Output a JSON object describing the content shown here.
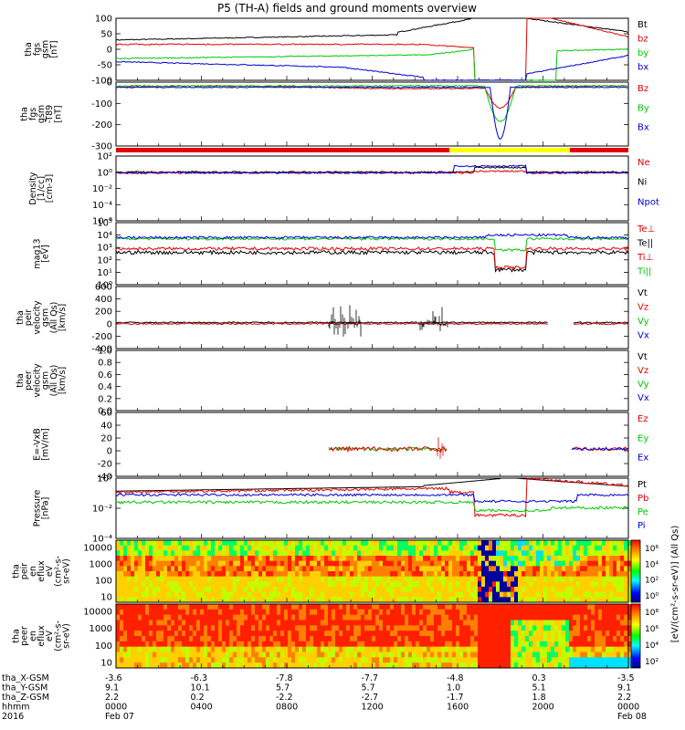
{
  "title": "P5 (TH-A) fields and ground moments overview",
  "colors": {
    "black": "#000000",
    "red": "#e00000",
    "green": "#00c800",
    "blue": "#0000d0",
    "yellow": "#ffff00"
  },
  "chart_data": [
    {
      "id": "p1",
      "type": "line",
      "ylabel": [
        "tha",
        "fgs",
        "gsm",
        "[nT]"
      ],
      "yticks": [
        "100",
        "50",
        "0",
        "-50",
        "-100"
      ],
      "ylim": [
        -100,
        100
      ],
      "legend": [
        {
          "name": "Bt",
          "color": "#000000"
        },
        {
          "name": "bz",
          "color": "#e00000"
        },
        {
          "name": "by",
          "color": "#00c800"
        },
        {
          "name": "bx",
          "color": "#0000d0"
        }
      ]
    },
    {
      "id": "p2",
      "type": "line",
      "ylabel": [
        "tha",
        "fgs",
        "gsm",
        "-T89",
        "[nT]"
      ],
      "yticks": [
        "0",
        "-100",
        "-200",
        "-300"
      ],
      "ylim": [
        -340,
        30
      ],
      "legend": [
        {
          "name": "Bz",
          "color": "#e00000"
        },
        {
          "name": "By",
          "color": "#00c800"
        },
        {
          "name": "Bx",
          "color": "#0000d0"
        }
      ]
    },
    {
      "id": "p3",
      "type": "line",
      "ylabel": [
        "Density",
        "[1/cc]",
        "[cm-3]"
      ],
      "yticks": [
        "10²",
        "10⁰",
        "10⁻²",
        "10⁻⁴",
        "10⁻⁶"
      ],
      "ylim": [
        -6,
        2.5
      ],
      "scale": "log",
      "legend": [
        {
          "name": "Ne",
          "color": "#e00000"
        },
        {
          "name": "Ni",
          "color": "#000000"
        },
        {
          "name": "Npot",
          "color": "#0000d0"
        }
      ]
    },
    {
      "id": "p4",
      "type": "line",
      "ylabel": [
        "mag13",
        "[eV]"
      ],
      "yticks": [
        "10⁵",
        "10⁴",
        "10³",
        "10²",
        "10¹",
        "10⁰"
      ],
      "ylim": [
        0,
        5
      ],
      "scale": "log",
      "legend": [
        {
          "name": "Te⊥",
          "color": "#e00000"
        },
        {
          "name": "Te||",
          "color": "#000000"
        },
        {
          "name": "Ti⊥",
          "color": "#e00000"
        },
        {
          "name": "Ti||",
          "color": "#00c800"
        }
      ]
    },
    {
      "id": "p5",
      "type": "line",
      "ylabel": [
        "tha",
        "peir",
        "velocity",
        "gsm",
        "(All Qs)",
        "[km/s]"
      ],
      "yticks": [
        "600",
        "400",
        "200",
        "0",
        "-200",
        "-400"
      ],
      "ylim": [
        -400,
        600
      ],
      "legend": [
        {
          "name": "Vt",
          "color": "#000000"
        },
        {
          "name": "Vz",
          "color": "#e00000"
        },
        {
          "name": "Vy",
          "color": "#00c800"
        },
        {
          "name": "Vx",
          "color": "#0000d0"
        }
      ]
    },
    {
      "id": "p6",
      "type": "line",
      "ylabel": [
        "tha",
        "peer",
        "velocity",
        "gsm",
        "(All Qs)",
        "[km/s]"
      ],
      "yticks": [
        "1.0",
        "0.8",
        "0.6",
        "0.4",
        "0.2",
        "0.0"
      ],
      "ylim": [
        0,
        1
      ],
      "legend": [
        {
          "name": "Vt",
          "color": "#000000"
        },
        {
          "name": "Vz",
          "color": "#e00000"
        },
        {
          "name": "Vy",
          "color": "#00c800"
        },
        {
          "name": "Vx",
          "color": "#0000d0"
        }
      ]
    },
    {
      "id": "p7",
      "type": "line",
      "ylabel": [
        "E=-VxB",
        "[mV/m]"
      ],
      "yticks": [
        "60",
        "40",
        "20",
        "0",
        "-20",
        "-40"
      ],
      "ylim": [
        -45,
        60
      ],
      "legend": [
        {
          "name": "Ez",
          "color": "#e00000"
        },
        {
          "name": "Ey",
          "color": "#00c800"
        },
        {
          "name": "Ex",
          "color": "#0000d0"
        }
      ]
    },
    {
      "id": "p8",
      "type": "line",
      "ylabel": [
        "Pressure",
        "[nPa]"
      ],
      "yticks": [
        "10⁰",
        "10⁻²",
        "10⁻⁴"
      ],
      "ylim": [
        -5.5,
        1
      ],
      "scale": "log",
      "legend": [
        {
          "name": "Pt",
          "color": "#000000"
        },
        {
          "name": "Pb",
          "color": "#e00000"
        },
        {
          "name": "Pe",
          "color": "#00c800"
        },
        {
          "name": "Pi",
          "color": "#0000d0"
        }
      ]
    },
    {
      "id": "p9",
      "type": "heatmap",
      "ylabel": [
        "tha",
        "peir",
        "en",
        "eflux",
        "eV",
        "(cm²-s-",
        "sr-eV)"
      ],
      "yticks": [
        "10000",
        "1000",
        "100",
        "10"
      ],
      "colorbar": [
        "10⁶",
        "10⁴",
        "10²",
        "10⁰"
      ]
    },
    {
      "id": "p10",
      "type": "heatmap",
      "ylabel": [
        "tha",
        "peer",
        "en",
        "eflux",
        "eV",
        "(cm²-s-",
        "sr-eV)"
      ],
      "yticks": [
        "10000",
        "1000",
        "100",
        "10"
      ],
      "colorbar": [
        "10⁸",
        "10⁶",
        "10⁴",
        "10²"
      ]
    }
  ],
  "colorbar_label": "[eV/(cm²-s-sr-eV)] (All Qs)",
  "xaxis": {
    "rows": [
      {
        "label": "tha_X-GSM",
        "values": [
          "-3.6",
          "-6.3",
          "-7.8",
          "-7.7",
          "-4.8",
          "0.3",
          "-3.5"
        ]
      },
      {
        "label": "tha_Y-GSM",
        "values": [
          "9.1",
          "10.1",
          "5.7",
          "5.7",
          "1.0",
          "5.1",
          "9.1"
        ]
      },
      {
        "label": "tha_Z-GSM",
        "values": [
          "2.2",
          "0.2",
          "-2.2",
          "-2.7",
          "-1.7",
          "1.8",
          "2.2"
        ]
      },
      {
        "label": "hhmm",
        "values": [
          "0000",
          "0400",
          "0800",
          "1200",
          "1600",
          "2000",
          "0000"
        ]
      },
      {
        "label": "2016",
        "values": [
          "Feb 07",
          "",
          "",
          "",
          "",
          "",
          "Feb 08"
        ]
      }
    ]
  }
}
